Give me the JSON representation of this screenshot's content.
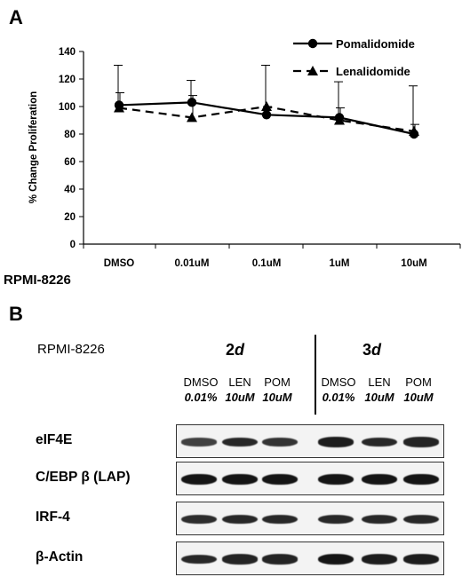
{
  "panel_a": {
    "letter": "A",
    "cell_line": "RPMI-8226"
  },
  "chart_data": {
    "type": "line",
    "ylabel": "% Change Proliferation",
    "xlabel": "",
    "ylim": [
      0,
      140
    ],
    "yticks": [
      0,
      20,
      40,
      60,
      80,
      100,
      120,
      140
    ],
    "categories": [
      "DMSO",
      "0.01uM",
      "0.1uM",
      "1uM",
      "10uM"
    ],
    "legend_position": "top-right",
    "series": [
      {
        "name": "Pomalidomide",
        "marker": "circle",
        "line_style": "solid",
        "values": [
          101,
          103,
          94,
          92,
          80
        ],
        "error_upper": [
          130,
          119,
          130,
          118,
          115
        ]
      },
      {
        "name": "Lenalidomide",
        "marker": "triangle",
        "line_style": "dashed",
        "values": [
          99,
          92,
          100,
          90,
          82
        ],
        "error_upper": [
          110,
          108,
          100,
          99,
          87
        ]
      }
    ]
  },
  "panel_b": {
    "letter": "B",
    "cell_line": "RPMI-8226",
    "timepoints": [
      {
        "label": "2",
        "unit": "d"
      },
      {
        "label": "3",
        "unit": "d"
      }
    ],
    "conditions": [
      {
        "name": "DMSO",
        "conc": "0.01%"
      },
      {
        "name": "LEN",
        "conc": "10uM"
      },
      {
        "name": "POM",
        "conc": "10uM"
      },
      {
        "name": "DMSO",
        "conc": "0.01%"
      },
      {
        "name": "LEN",
        "conc": "10uM"
      },
      {
        "name": "POM",
        "conc": "10uM"
      }
    ],
    "blots": [
      {
        "label": "eIF4E",
        "intensity": [
          0.55,
          0.8,
          0.7,
          0.9,
          0.8,
          0.85
        ]
      },
      {
        "label": "C/EBP β (LAP)",
        "intensity": [
          1,
          1,
          1,
          1,
          1,
          1
        ]
      },
      {
        "label": "IRF-4",
        "intensity": [
          0.75,
          0.8,
          0.8,
          0.8,
          0.8,
          0.8
        ]
      },
      {
        "label": "β-Actin",
        "intensity": [
          0.8,
          0.85,
          0.85,
          1,
          0.9,
          0.9
        ]
      }
    ]
  }
}
